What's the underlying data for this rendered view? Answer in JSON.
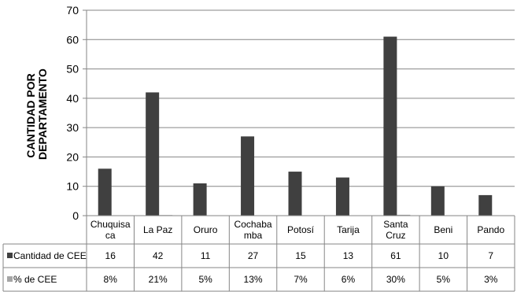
{
  "chart_data": {
    "type": "bar",
    "ylabel": "CANTIDAD POR DEPARTAMENTO",
    "ylabel_lines": [
      "CANTIDAD POR",
      "DEPARTAMENTO"
    ],
    "ylim": [
      0,
      70
    ],
    "yticks": [
      0,
      10,
      20,
      30,
      40,
      50,
      60,
      70
    ],
    "grid": true,
    "categories": [
      "Chuquisaca",
      "La Paz",
      "Oruro",
      "Cochabamba",
      "Potosí",
      "Tarija",
      "Santa Cruz",
      "Beni",
      "Pando"
    ],
    "category_lines": [
      [
        "Chuquisa",
        "ca"
      ],
      [
        "La Paz"
      ],
      [
        "Oruro"
      ],
      [
        "Cochaba",
        "mba"
      ],
      [
        "Potosí"
      ],
      [
        "Tarija"
      ],
      [
        "Santa",
        "Cruz"
      ],
      [
        "Beni"
      ],
      [
        "Pando"
      ]
    ],
    "series": [
      {
        "name": "Cantidad de CEE",
        "color": "#404040",
        "values": [
          16,
          42,
          11,
          27,
          15,
          13,
          61,
          10,
          7
        ],
        "labels": [
          "16",
          "42",
          "11",
          "27",
          "15",
          "13",
          "61",
          "10",
          "7"
        ]
      },
      {
        "name": "% de CEE",
        "color": "#a6a6a6",
        "values": [
          0.08,
          0.21,
          0.05,
          0.13,
          0.07,
          0.06,
          0.3,
          0.05,
          0.03
        ],
        "labels": [
          "8%",
          "21%",
          "5%",
          "13%",
          "7%",
          "6%",
          "30%",
          "5%",
          "3%"
        ]
      }
    ]
  }
}
